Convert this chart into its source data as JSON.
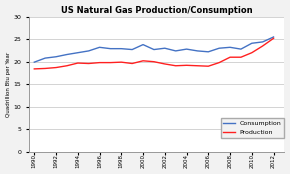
{
  "title": "US Natural Gas Production/Consumption",
  "ylabel": "Quadrillion Btu per Year",
  "years": [
    1990,
    1991,
    1992,
    1993,
    1994,
    1995,
    1996,
    1997,
    1998,
    1999,
    2000,
    2001,
    2002,
    2003,
    2004,
    2005,
    2006,
    2007,
    2008,
    2009,
    2010,
    2011,
    2012
  ],
  "consumption": [
    19.9,
    20.8,
    21.1,
    21.6,
    22.0,
    22.4,
    23.2,
    22.9,
    22.9,
    22.7,
    23.8,
    22.7,
    23.0,
    22.4,
    22.8,
    22.4,
    22.2,
    23.0,
    23.2,
    22.8,
    24.1,
    24.4,
    25.5
  ],
  "production": [
    18.4,
    18.5,
    18.7,
    19.1,
    19.7,
    19.6,
    19.8,
    19.8,
    19.9,
    19.6,
    20.2,
    20.0,
    19.5,
    19.1,
    19.2,
    19.1,
    19.0,
    19.8,
    21.0,
    21.0,
    22.0,
    23.5,
    25.2
  ],
  "consumption_color": "#4472C4",
  "production_color": "#FF2020",
  "background_color": "#f2f2f2",
  "plot_bg_color": "#ffffff",
  "ylim": [
    0,
    30
  ],
  "yticks": [
    0,
    5,
    10,
    15,
    20,
    25,
    30
  ],
  "xtick_labels": [
    "1990",
    "1992",
    "1994",
    "1996",
    "1998",
    "2000",
    "2002",
    "2004",
    "2006",
    "2008",
    "2010",
    "2012"
  ],
  "xtick_years": [
    1990,
    1992,
    1994,
    1996,
    1998,
    2000,
    2002,
    2004,
    2006,
    2008,
    2010,
    2012
  ],
  "legend_consumption": "Consumption",
  "legend_production": "Production"
}
